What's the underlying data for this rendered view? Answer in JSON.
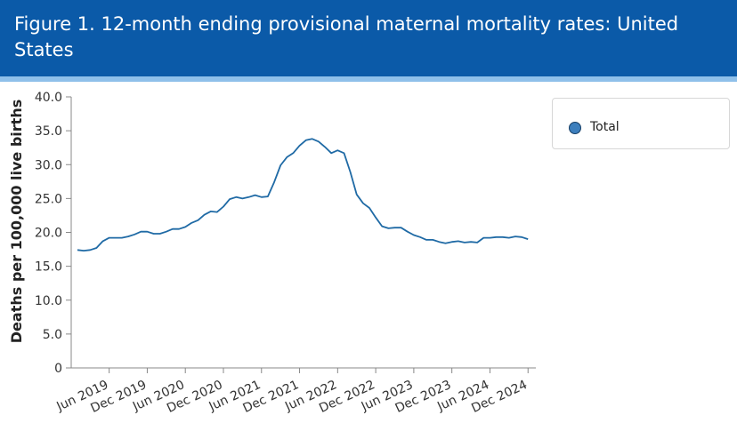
{
  "header": {
    "title": "Figure 1. 12-month ending provisional maternal mortality rates: United States"
  },
  "colors": {
    "header_bg": "#0b5aa8",
    "header_stripe": "#8fc0ea",
    "series_line": "#1f6aa5",
    "legend_swatch": "#3d7fbd"
  },
  "chart_data": {
    "type": "line",
    "title": "Figure 1. 12-month ending provisional maternal mortality rates: United States",
    "xlabel": "",
    "ylabel": "Deaths per 100,000 live births",
    "ylim": [
      0,
      40
    ],
    "y_ticks": [
      "0",
      "5.0",
      "10.0",
      "15.0",
      "20.0",
      "25.0",
      "30.0",
      "35.0",
      "40.0"
    ],
    "x_tick_labels": [
      "Jun 2019",
      "Dec 2019",
      "Jun 2020",
      "Dec 2020",
      "Jun 2021",
      "Dec 2021",
      "Jun 2022",
      "Dec 2022",
      "Jun 2023",
      "Dec 2023",
      "Jun 2024",
      "Dec 2024"
    ],
    "grid": false,
    "legend_position": "top-right",
    "x": [
      "Jan 2019",
      "Feb 2019",
      "Mar 2019",
      "Apr 2019",
      "May 2019",
      "Jun 2019",
      "Jul 2019",
      "Aug 2019",
      "Sep 2019",
      "Oct 2019",
      "Nov 2019",
      "Dec 2019",
      "Jan 2020",
      "Feb 2020",
      "Mar 2020",
      "Apr 2020",
      "May 2020",
      "Jun 2020",
      "Jul 2020",
      "Aug 2020",
      "Sep 2020",
      "Oct 2020",
      "Nov 2020",
      "Dec 2020",
      "Jan 2021",
      "Feb 2021",
      "Mar 2021",
      "Apr 2021",
      "May 2021",
      "Jun 2021",
      "Jul 2021",
      "Aug 2021",
      "Sep 2021",
      "Oct 2021",
      "Nov 2021",
      "Dec 2021",
      "Jan 2022",
      "Feb 2022",
      "Mar 2022",
      "Apr 2022",
      "May 2022",
      "Jun 2022",
      "Jul 2022",
      "Aug 2022",
      "Sep 2022",
      "Oct 2022",
      "Nov 2022",
      "Dec 2022",
      "Jan 2023",
      "Feb 2023",
      "Mar 2023",
      "Apr 2023",
      "May 2023",
      "Jun 2023",
      "Jul 2023",
      "Aug 2023",
      "Sep 2023",
      "Oct 2023",
      "Nov 2023",
      "Dec 2023",
      "Jan 2024",
      "Feb 2024",
      "Mar 2024",
      "Apr 2024",
      "May 2024",
      "Jun 2024",
      "Jul 2024",
      "Aug 2024",
      "Sep 2024",
      "Oct 2024",
      "Nov 2024",
      "Dec 2024"
    ],
    "series": [
      {
        "name": "Total",
        "values": [
          17.4,
          17.3,
          17.4,
          17.7,
          18.7,
          19.2,
          19.2,
          19.2,
          19.4,
          19.7,
          20.1,
          20.1,
          19.8,
          19.8,
          20.1,
          20.5,
          20.5,
          20.8,
          21.4,
          21.8,
          22.6,
          23.1,
          23.0,
          23.8,
          24.9,
          25.2,
          25.0,
          25.2,
          25.5,
          25.2,
          25.3,
          27.4,
          29.9,
          31.1,
          31.7,
          32.8,
          33.6,
          33.8,
          33.4,
          32.6,
          31.7,
          32.1,
          31.7,
          28.9,
          25.6,
          24.3,
          23.6,
          22.2,
          20.9,
          20.6,
          20.7,
          20.7,
          20.1,
          19.6,
          19.3,
          18.9,
          18.9,
          18.6,
          18.4,
          18.6,
          18.7,
          18.5,
          18.6,
          18.5,
          19.2,
          19.2,
          19.3,
          19.3,
          19.2,
          19.4,
          19.3,
          19.0
        ]
      }
    ]
  },
  "legend": {
    "items": [
      {
        "label": "Total"
      }
    ]
  }
}
